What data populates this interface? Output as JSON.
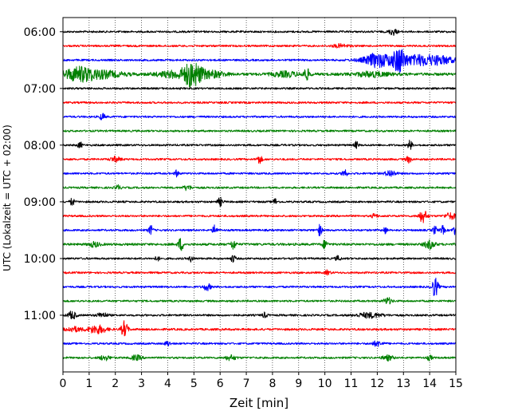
{
  "chart_data": {
    "type": "line",
    "xlabel": "Zeit  [min]",
    "ylabel": "UTC (Lokalzeit = UTC + 02:00)",
    "xlim": [
      0,
      15
    ],
    "x_ticks": [
      "0",
      "1",
      "2",
      "3",
      "4",
      "5",
      "6",
      "7",
      "8",
      "9",
      "10",
      "11",
      "12",
      "13",
      "14",
      "15"
    ],
    "y_ticks": [
      "06:00",
      "07:00",
      "08:00",
      "09:00",
      "10:00",
      "11:00"
    ],
    "grid": "vertical dotted",
    "colors": [
      "#000000",
      "#ff0000",
      "#0000ff",
      "#008000"
    ],
    "traces": [
      {
        "start": "06:00",
        "color": "#000000",
        "noise": 1.0,
        "events": [
          [
            12.6,
            4,
            0.15
          ]
        ]
      },
      {
        "start": "06:15",
        "color": "#ff0000",
        "noise": 1.0,
        "events": [
          [
            10.6,
            2,
            0.3
          ]
        ]
      },
      {
        "start": "06:30",
        "color": "#0000ff",
        "noise": 1.0,
        "events": [
          [
            12.3,
            7,
            0.8
          ],
          [
            12.85,
            12,
            0.2
          ],
          [
            13.7,
            6,
            0.6
          ],
          [
            14.5,
            4,
            0.5
          ],
          [
            11.9,
            3,
            0.3
          ]
        ]
      },
      {
        "start": "06:45",
        "color": "#008000",
        "noise": 1.4,
        "events": [
          [
            0.6,
            8,
            0.6
          ],
          [
            1.5,
            4,
            0.8
          ],
          [
            4.3,
            4,
            0.7
          ],
          [
            4.95,
            14,
            0.35
          ],
          [
            5.7,
            4,
            0.5
          ],
          [
            9.3,
            7,
            0.12
          ],
          [
            8.5,
            3,
            0.5
          ],
          [
            11.8,
            3,
            0.6
          ]
        ]
      },
      {
        "start": "07:00",
        "color": "#000000",
        "noise": 1.0,
        "events": []
      },
      {
        "start": "07:15",
        "color": "#ff0000",
        "noise": 1.0,
        "events": []
      },
      {
        "start": "07:30",
        "color": "#0000ff",
        "noise": 1.0,
        "events": [
          [
            1.5,
            4,
            0.1
          ]
        ]
      },
      {
        "start": "07:45",
        "color": "#008000",
        "noise": 1.0,
        "events": []
      },
      {
        "start": "08:00",
        "color": "#000000",
        "noise": 1.0,
        "events": [
          [
            0.65,
            4,
            0.08
          ],
          [
            11.2,
            4,
            0.08
          ],
          [
            13.25,
            6,
            0.08
          ]
        ]
      },
      {
        "start": "08:15",
        "color": "#ff0000",
        "noise": 1.0,
        "events": [
          [
            2.0,
            3,
            0.2
          ],
          [
            7.5,
            5,
            0.1
          ],
          [
            13.2,
            4,
            0.1
          ]
        ]
      },
      {
        "start": "08:30",
        "color": "#0000ff",
        "noise": 1.0,
        "events": [
          [
            4.35,
            4,
            0.08
          ],
          [
            10.75,
            7,
            0.08
          ],
          [
            12.5,
            4,
            0.2
          ]
        ]
      },
      {
        "start": "08:45",
        "color": "#008000",
        "noise": 1.0,
        "events": [
          [
            2.1,
            3,
            0.1
          ],
          [
            4.75,
            3,
            0.15
          ]
        ]
      },
      {
        "start": "09:00",
        "color": "#000000",
        "noise": 1.0,
        "events": [
          [
            0.35,
            5,
            0.08
          ],
          [
            6.0,
            5,
            0.1
          ],
          [
            8.1,
            4,
            0.08
          ]
        ]
      },
      {
        "start": "09:15",
        "color": "#ff0000",
        "noise": 1.0,
        "events": [
          [
            13.75,
            8,
            0.15
          ],
          [
            14.8,
            4,
            0.2
          ],
          [
            11.9,
            3,
            0.1
          ]
        ]
      },
      {
        "start": "09:30",
        "color": "#0000ff",
        "noise": 1.0,
        "events": [
          [
            3.35,
            6,
            0.08
          ],
          [
            5.8,
            7,
            0.08
          ],
          [
            9.8,
            7,
            0.08
          ],
          [
            14.2,
            5,
            0.08
          ],
          [
            14.5,
            5,
            0.08
          ],
          [
            14.95,
            5,
            0.08
          ],
          [
            12.3,
            4,
            0.08
          ]
        ]
      },
      {
        "start": "09:45",
        "color": "#008000",
        "noise": 1.2,
        "events": [
          [
            4.5,
            8,
            0.1
          ],
          [
            6.5,
            6,
            0.1
          ],
          [
            10.0,
            5,
            0.1
          ],
          [
            14.0,
            5,
            0.2
          ],
          [
            1.2,
            3,
            0.2
          ]
        ]
      },
      {
        "start": "10:00",
        "color": "#000000",
        "noise": 1.0,
        "events": [
          [
            4.9,
            4,
            0.08
          ],
          [
            6.5,
            5,
            0.08
          ],
          [
            10.5,
            3,
            0.1
          ],
          [
            3.6,
            3,
            0.08
          ]
        ]
      },
      {
        "start": "10:15",
        "color": "#ff0000",
        "noise": 1.0,
        "events": [
          [
            10.1,
            3,
            0.1
          ]
        ]
      },
      {
        "start": "10:30",
        "color": "#0000ff",
        "noise": 1.0,
        "events": [
          [
            5.5,
            4,
            0.15
          ],
          [
            14.2,
            12,
            0.12
          ]
        ]
      },
      {
        "start": "10:45",
        "color": "#008000",
        "noise": 1.0,
        "events": [
          [
            12.4,
            4,
            0.15
          ]
        ]
      },
      {
        "start": "11:00",
        "color": "#000000",
        "noise": 1.0,
        "events": [
          [
            0.35,
            5,
            0.15
          ],
          [
            1.5,
            3,
            0.2
          ],
          [
            7.7,
            3,
            0.1
          ],
          [
            11.7,
            3,
            0.5
          ]
        ]
      },
      {
        "start": "11:15",
        "color": "#ff0000",
        "noise": 1.1,
        "events": [
          [
            1.3,
            5,
            0.35
          ],
          [
            2.35,
            10,
            0.12
          ],
          [
            0.4,
            3,
            0.3
          ]
        ]
      },
      {
        "start": "11:30",
        "color": "#0000ff",
        "noise": 1.0,
        "events": [
          [
            4.0,
            3,
            0.1
          ],
          [
            12.0,
            3,
            0.2
          ]
        ]
      },
      {
        "start": "11:45",
        "color": "#008000",
        "noise": 1.0,
        "events": [
          [
            1.6,
            3,
            0.2
          ],
          [
            2.8,
            3,
            0.2
          ],
          [
            6.4,
            3,
            0.2
          ],
          [
            12.4,
            3,
            0.2
          ],
          [
            14.0,
            3,
            0.1
          ]
        ]
      }
    ]
  }
}
